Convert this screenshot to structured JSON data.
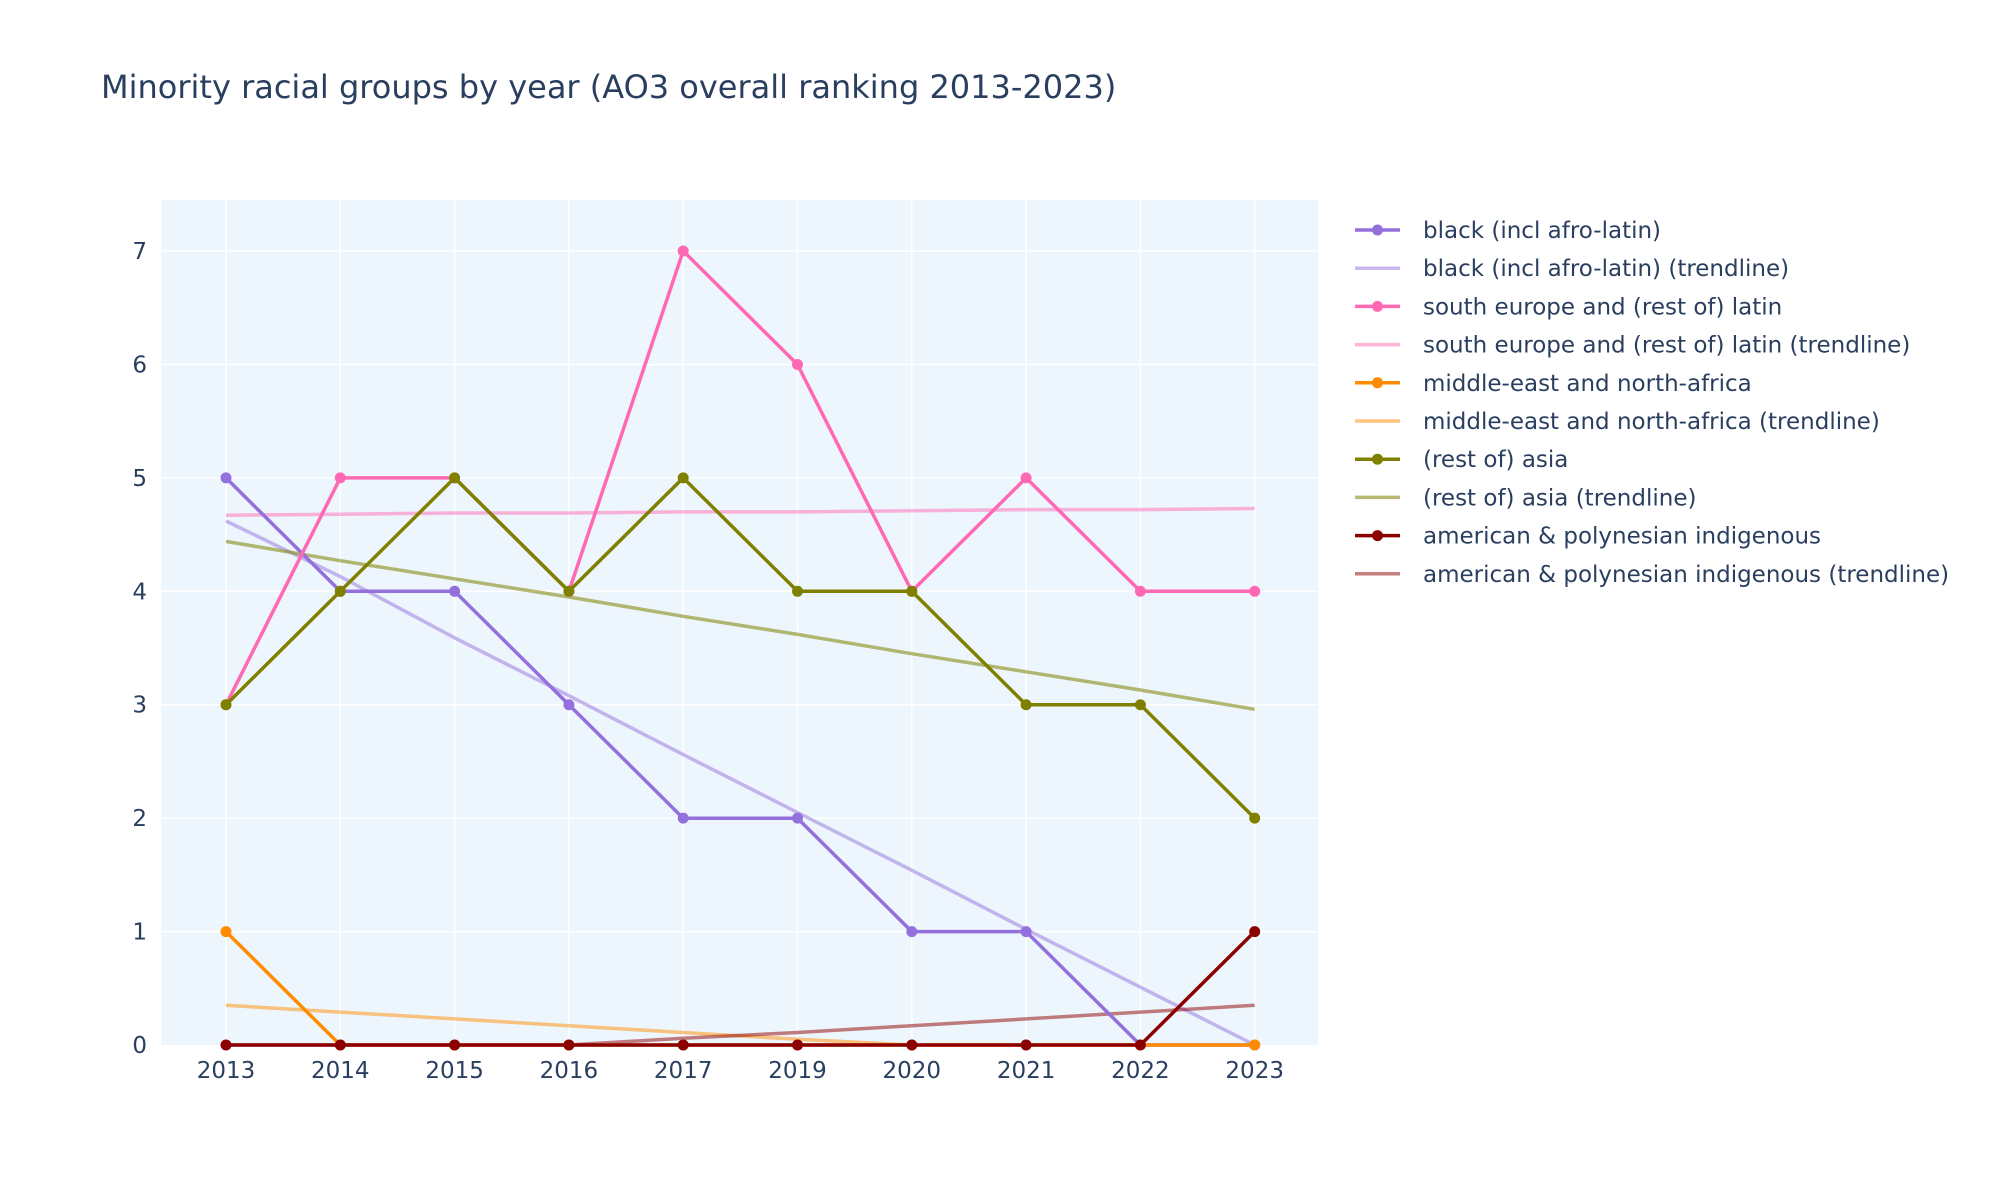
{
  "chart_data": {
    "type": "line",
    "title": "Minority racial groups by year (AO3 overall ranking 2013-2023)",
    "xlabel": "",
    "ylabel": "",
    "categories": [
      "2013",
      "2014",
      "2015",
      "2016",
      "2017",
      "2019",
      "2020",
      "2021",
      "2022",
      "2023"
    ],
    "ylim": [
      0,
      7.45
    ],
    "yticks": [
      0,
      1,
      2,
      3,
      4,
      5,
      6,
      7
    ],
    "grid": true,
    "legend_position": "right",
    "plot_background": "#eef6fd",
    "series": [
      {
        "name": "black (incl afro-latin)",
        "color": "#9370db",
        "markers": true,
        "width": 3.5,
        "opacity": 1,
        "values": [
          5,
          4,
          4,
          3,
          2,
          2,
          1,
          1,
          0,
          0
        ]
      },
      {
        "name": "black (incl afro-latin) (trendline)",
        "color": "#9370db",
        "markers": false,
        "width": 3.5,
        "opacity": 0.5,
        "values": [
          4.62,
          4.13,
          3.59,
          3.08,
          2.56,
          2.05,
          1.54,
          1.02,
          0.51,
          0
        ]
      },
      {
        "name": "south europe and (rest of) latin",
        "color": "#ff69b4",
        "markers": true,
        "width": 3.5,
        "opacity": 1,
        "values": [
          3,
          5,
          5,
          4,
          7,
          6,
          4,
          5,
          4,
          4
        ]
      },
      {
        "name": "south europe and (rest of) latin (trendline)",
        "color": "#ff69b4",
        "markers": false,
        "width": 3.5,
        "opacity": 0.5,
        "values": [
          4.67,
          4.68,
          4.69,
          4.69,
          4.7,
          4.7,
          4.71,
          4.72,
          4.72,
          4.73
        ]
      },
      {
        "name": "middle-east and north-africa",
        "color": "#ff8c00",
        "markers": true,
        "width": 3.5,
        "opacity": 1,
        "values": [
          1,
          0,
          0,
          0,
          0,
          0,
          0,
          0,
          0,
          0
        ]
      },
      {
        "name": "middle-east and north-africa (trendline)",
        "color": "#ff8c00",
        "markers": false,
        "width": 3.5,
        "opacity": 0.5,
        "values": [
          0.35,
          0.29,
          0.23,
          0.17,
          0.11,
          0.05,
          0,
          0,
          0,
          0
        ]
      },
      {
        "name": "(rest of) asia",
        "color": "#808000",
        "markers": true,
        "width": 3.5,
        "opacity": 1,
        "values": [
          3,
          4,
          5,
          4,
          5,
          4,
          4,
          3,
          3,
          2
        ]
      },
      {
        "name": "(rest of) asia (trendline)",
        "color": "#808000",
        "markers": false,
        "width": 3.5,
        "opacity": 0.55,
        "values": [
          4.44,
          4.27,
          4.11,
          3.95,
          3.78,
          3.62,
          3.45,
          3.29,
          3.13,
          2.96
        ]
      },
      {
        "name": "american & polynesian indigenous",
        "color": "#8b0000",
        "markers": true,
        "width": 3.5,
        "opacity": 1,
        "values": [
          0,
          0,
          0,
          0,
          0,
          0,
          0,
          0,
          0,
          1
        ]
      },
      {
        "name": "american & polynesian indigenous (trendline)",
        "color": "#8b0000",
        "markers": false,
        "width": 3.5,
        "opacity": 0.5,
        "values": [
          0,
          0,
          0,
          0,
          0.06,
          0.11,
          0.17,
          0.23,
          0.29,
          0.35
        ]
      }
    ]
  }
}
